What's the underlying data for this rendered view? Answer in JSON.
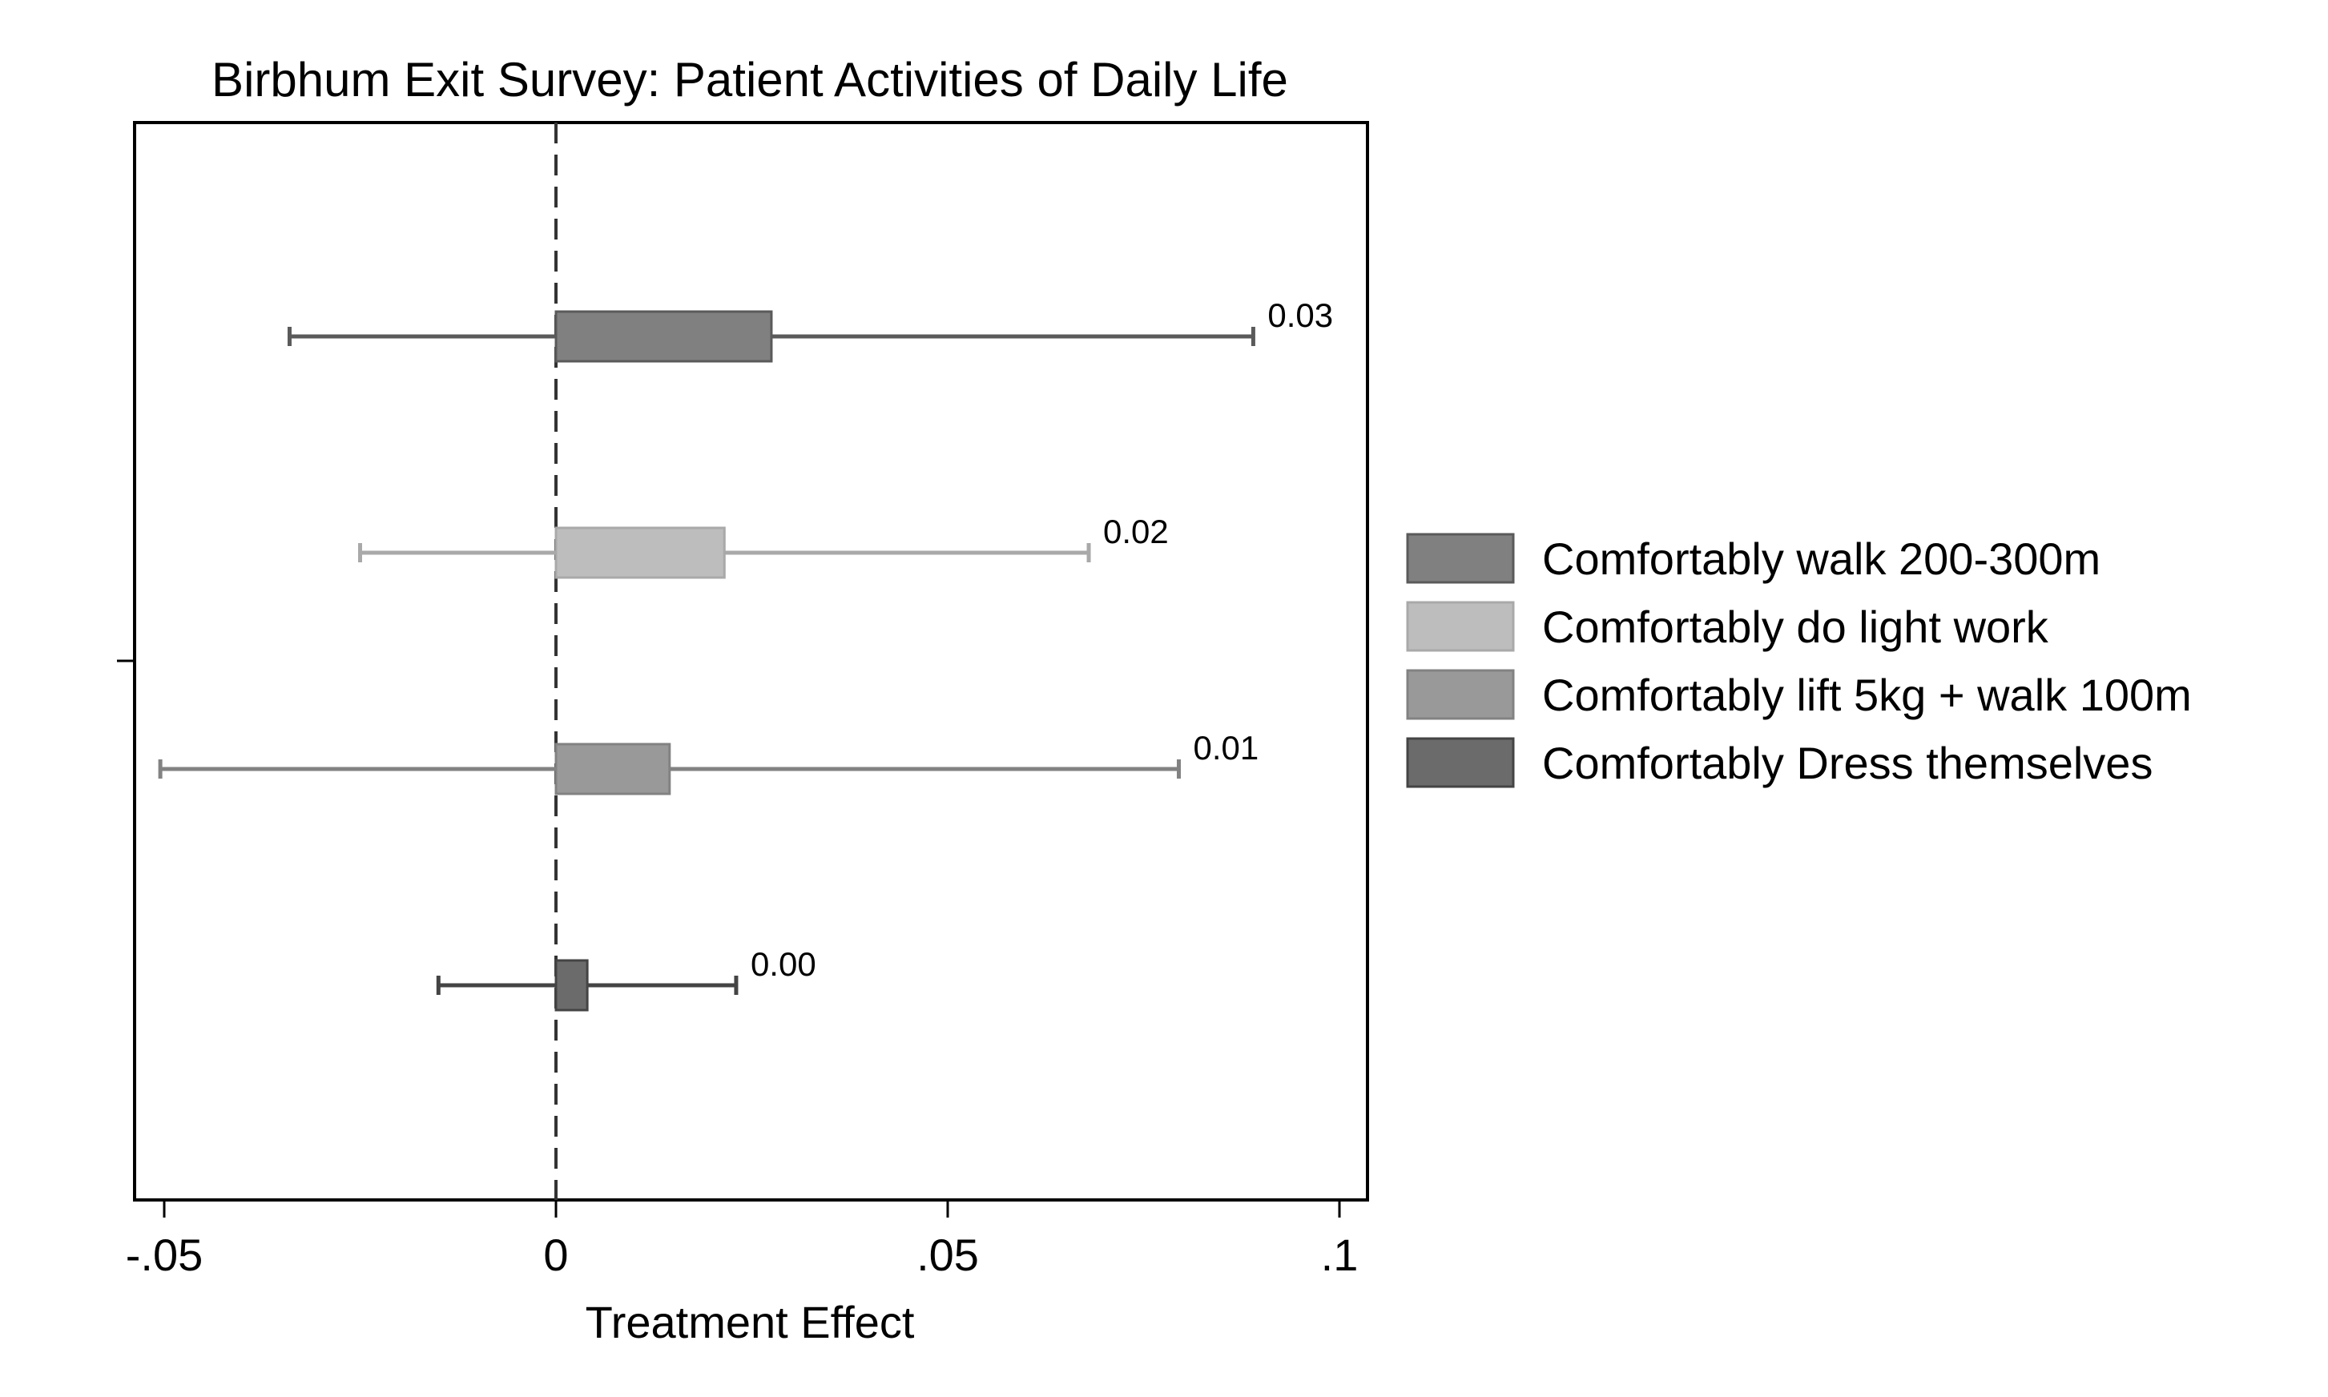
{
  "chart_data": {
    "type": "bar",
    "orientation": "horizontal",
    "title": "Birbhum Exit Survey: Patient Activities of Daily Life",
    "xlabel": "Treatment Effect",
    "ylabel": "",
    "xlim": [
      -0.05,
      0.1
    ],
    "xticks": [
      {
        "value": -0.05,
        "label": "-.05"
      },
      {
        "value": 0,
        "label": "0"
      },
      {
        "value": 0.05,
        "label": ".05"
      },
      {
        "value": 0.1,
        "label": ".1"
      }
    ],
    "reference_line": {
      "value": 0,
      "style": "dashed"
    },
    "grid": false,
    "legend_position": "right",
    "series": [
      {
        "name": "Comfortably walk 200-300m",
        "value": 0.0275,
        "ci": [
          -0.034,
          0.089
        ],
        "label": "0.03",
        "color": "#808080"
      },
      {
        "name": "Comfortably do light work",
        "value": 0.0215,
        "ci": [
          -0.025,
          0.068
        ],
        "label": "0.02",
        "color": "#bdbdbd"
      },
      {
        "name": "Comfortably lift 5kg + walk 100m",
        "value": 0.0145,
        "ci": [
          -0.0505,
          0.0795
        ],
        "label": "0.01",
        "color": "#999999"
      },
      {
        "name": "Comfortably Dress themselves",
        "value": 0.004,
        "ci": [
          -0.015,
          0.023
        ],
        "label": "0.00",
        "color": "#6b6b6b"
      }
    ],
    "whisker_colors": [
      "#5a5a5a",
      "#a9a9a9",
      "#828282",
      "#444444"
    ]
  }
}
